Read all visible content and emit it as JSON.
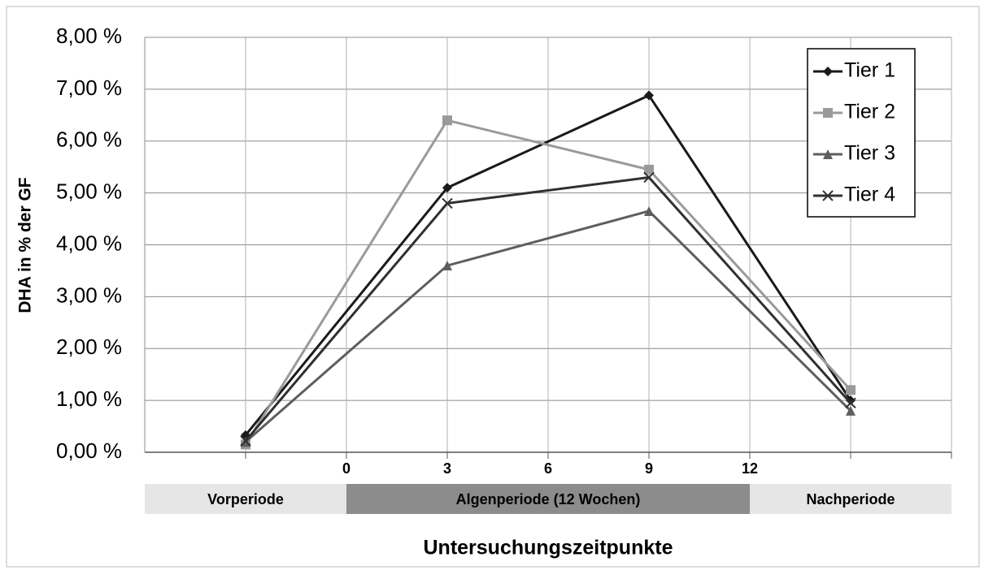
{
  "chart_data": {
    "type": "line",
    "ylabel": "DHA in % der GF",
    "xlabel": "Untersuchungszeitpunkte",
    "x": [
      -3,
      3,
      9,
      15
    ],
    "xlim": [
      -6,
      18
    ],
    "xticks": [
      0,
      3,
      6,
      9,
      12
    ],
    "xgrid": [
      -3,
      0,
      3,
      6,
      9,
      12,
      15,
      18
    ],
    "ylim": [
      0,
      8
    ],
    "yticks": [
      {
        "value": 0,
        "label": "0,00 %"
      },
      {
        "value": 1,
        "label": "1,00 %"
      },
      {
        "value": 2,
        "label": "2,00 %"
      },
      {
        "value": 3,
        "label": "3,00 %"
      },
      {
        "value": 4,
        "label": "4,00 %"
      },
      {
        "value": 5,
        "label": "5,00 %"
      },
      {
        "value": 6,
        "label": "6,00 %"
      },
      {
        "value": 7,
        "label": "7,00 %"
      },
      {
        "value": 8,
        "label": "8,00 %"
      }
    ],
    "grid": true,
    "legend": "upper right",
    "periods": [
      {
        "label": "Vorperiode",
        "start": -6,
        "end": 0,
        "color": "#e6e6e6"
      },
      {
        "label": "Algenperiode (12 Wochen)",
        "start": 0,
        "end": 12,
        "color": "#8c8c8c"
      },
      {
        "label": "Nachperiode",
        "start": 12,
        "end": 18,
        "color": "#e6e6e6"
      }
    ],
    "series": [
      {
        "name": "Tier 1",
        "color": "#1a1a1a",
        "marker": "diamond",
        "values": [
          0.33,
          5.1,
          6.88,
          1.0
        ]
      },
      {
        "name": "Tier 2",
        "color": "#9a9a9a",
        "marker": "square",
        "values": [
          0.15,
          6.4,
          5.45,
          1.2
        ]
      },
      {
        "name": "Tier 3",
        "color": "#5e5e5e",
        "marker": "triangle",
        "values": [
          0.2,
          3.6,
          4.65,
          0.8
        ]
      },
      {
        "name": "Tier 4",
        "color": "#303030",
        "marker": "x",
        "values": [
          0.22,
          4.8,
          5.3,
          0.95
        ]
      }
    ]
  }
}
